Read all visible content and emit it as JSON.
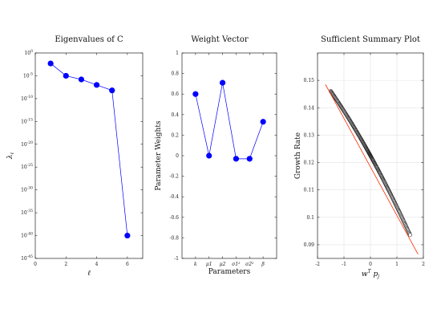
{
  "chart_data": [
    {
      "type": "line",
      "title": "Eigenvalues of C",
      "xlabel": "ℓ",
      "ylabel": "λℓ",
      "yscale": "log",
      "xlim": [
        0,
        7
      ],
      "xticks": [
        "0",
        "2",
        "4",
        "6"
      ],
      "ylim_exp": [
        -45,
        0
      ],
      "yticks": [
        "10^0",
        "10^-5",
        "10^-10",
        "10^-15",
        "10^-20",
        "10^-25",
        "10^-30",
        "10^-35",
        "10^-40",
        "10^-45"
      ],
      "series": [
        {
          "x": [
            1,
            2,
            3,
            4,
            5,
            6
          ],
          "log10_y": [
            -2.3,
            -5,
            -5.8,
            -7,
            -8.2,
            -40
          ],
          "color": "#0000ff"
        }
      ],
      "grid": false
    },
    {
      "type": "line",
      "title": "Weight Vector",
      "xlabel": "Parameters",
      "ylabel": "Parameter Weights",
      "ylim": [
        -1,
        1
      ],
      "yticks": [
        "1",
        "0.8",
        "0.6",
        "0.4",
        "0.2",
        "0",
        "-0.2",
        "-0.4",
        "-0.6",
        "-0.8",
        "-1"
      ],
      "categories": [
        "k",
        "μ1",
        "μ2",
        "σ1²",
        "σ2²",
        "β"
      ],
      "series": [
        {
          "values": [
            0.6,
            0.0,
            0.71,
            -0.03,
            -0.03,
            0.33
          ],
          "color": "#0000ff"
        }
      ],
      "grid": false
    },
    {
      "type": "scatter",
      "title": "Sufficient Summary Plot",
      "xlabel": "wᵀpj",
      "ylabel": "Growth Rate",
      "xlim": [
        -2,
        2
      ],
      "ylim": [
        0.085,
        0.16
      ],
      "xticks": [
        "-2",
        "-1",
        "0",
        "1",
        "2"
      ],
      "yticks": [
        "0.15",
        "0.14",
        "0.13",
        "0.12",
        "0.11",
        "0.1",
        "0.09"
      ],
      "fit_line": {
        "x": [
          -1.7,
          1.8
        ],
        "y": [
          0.1485,
          0.0865
        ],
        "color": "#ff2a00"
      },
      "points": {
        "x_range": [
          -1.5,
          1.5
        ],
        "marker_color": "#222222",
        "marker_fill": "#ffffff"
      },
      "grid": true
    }
  ]
}
